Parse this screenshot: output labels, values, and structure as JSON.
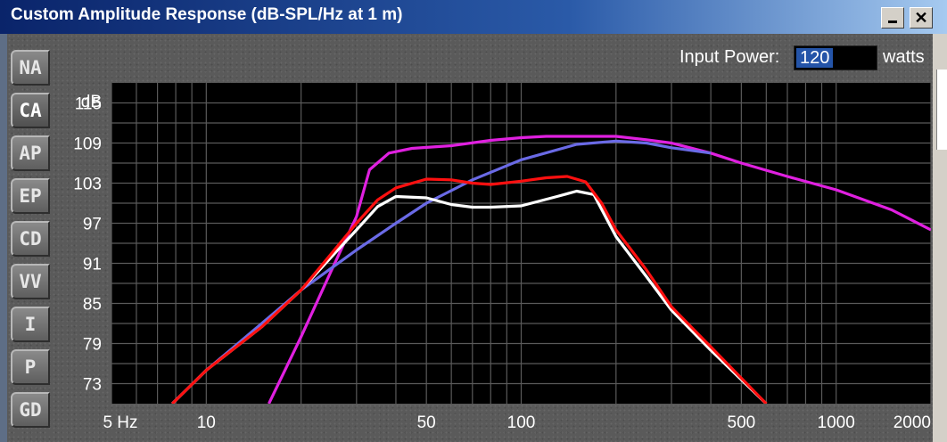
{
  "window": {
    "title": "Custom Amplitude Response (dB-SPL/Hz at 1 m)",
    "minimize_glyph": "_",
    "close_glyph": "✕"
  },
  "tabs": [
    {
      "label": "NA",
      "active": false
    },
    {
      "label": "CA",
      "active": true
    },
    {
      "label": "AP",
      "active": false
    },
    {
      "label": "EP",
      "active": false
    },
    {
      "label": "CD",
      "active": false
    },
    {
      "label": "VV",
      "active": false
    },
    {
      "label": "I",
      "active": false
    },
    {
      "label": "P",
      "active": false
    },
    {
      "label": "GD",
      "active": false
    }
  ],
  "input_power": {
    "label": "Input Power:",
    "value": "120",
    "unit": "watts"
  },
  "colors": {
    "plot_bg": "#000000",
    "grid": "#5a5a5a",
    "text": "#ffffff",
    "magenta": "#e020e0",
    "blue": "#6a6ae6",
    "white": "#ffffff",
    "red": "#ff1010"
  },
  "chart_data": {
    "type": "line",
    "title": "",
    "xlabel": "",
    "ylabel": "dB",
    "x_scale": "log",
    "xlim": [
      5,
      2000
    ],
    "ylim": [
      70,
      118
    ],
    "x_tick_labels": [
      {
        "value": 5,
        "label": "5 Hz"
      },
      {
        "value": 10,
        "label": "10"
      },
      {
        "value": 50,
        "label": "50"
      },
      {
        "value": 100,
        "label": "100"
      },
      {
        "value": 500,
        "label": "500"
      },
      {
        "value": 1000,
        "label": "1000"
      },
      {
        "value": 2000,
        "label": "2000"
      }
    ],
    "y_tick_labels": [
      {
        "value": 115,
        "label": "115"
      },
      {
        "value": 109,
        "label": "109"
      },
      {
        "value": 103,
        "label": "103"
      },
      {
        "value": 97,
        "label": "97"
      },
      {
        "value": 91,
        "label": "91"
      },
      {
        "value": 85,
        "label": "85"
      },
      {
        "value": 79,
        "label": "79"
      },
      {
        "value": 73,
        "label": "73"
      }
    ],
    "grid": true,
    "series": [
      {
        "color": "magenta",
        "x": [
          15.8,
          20,
          25,
          30,
          33,
          38,
          45,
          60,
          80,
          100,
          120,
          150,
          200,
          250,
          300,
          400,
          500,
          700,
          1000,
          1500,
          2000
        ],
        "y": [
          70,
          80,
          90,
          98,
          105,
          107.5,
          108.2,
          108.6,
          109.4,
          109.8,
          110,
          110,
          110,
          109.5,
          109,
          107.5,
          106,
          104,
          102,
          99,
          96
        ]
      },
      {
        "color": "blue",
        "x": [
          7.8,
          10,
          15,
          20,
          30,
          40,
          50,
          70,
          100,
          150,
          200,
          250,
          300,
          400
        ],
        "y": [
          70,
          75,
          82,
          87,
          93,
          97,
          100,
          103.5,
          106.5,
          108.8,
          109.3,
          109,
          108.3,
          107.5
        ]
      },
      {
        "color": "white",
        "x": [
          7.8,
          10,
          15,
          20,
          25,
          30,
          35,
          40,
          50,
          60,
          70,
          80,
          100,
          130,
          150,
          170,
          200,
          250,
          300,
          400,
          600
        ],
        "y": [
          70,
          75,
          81.5,
          87,
          92,
          96,
          99.5,
          101,
          100.8,
          99.8,
          99.4,
          99.4,
          99.6,
          101,
          101.8,
          101.3,
          95,
          89,
          84,
          78,
          70
        ]
      },
      {
        "color": "red",
        "x": [
          7.8,
          10,
          15,
          20,
          25,
          30,
          35,
          40,
          50,
          60,
          70,
          80,
          100,
          120,
          140,
          160,
          180,
          200,
          250,
          300,
          400,
          600
        ],
        "y": [
          70,
          75,
          81.5,
          87,
          92.5,
          97,
          100.5,
          102.3,
          103.6,
          103.5,
          103,
          102.8,
          103.3,
          103.8,
          104,
          103.2,
          100,
          96,
          90,
          84.5,
          78.5,
          70
        ]
      }
    ]
  }
}
